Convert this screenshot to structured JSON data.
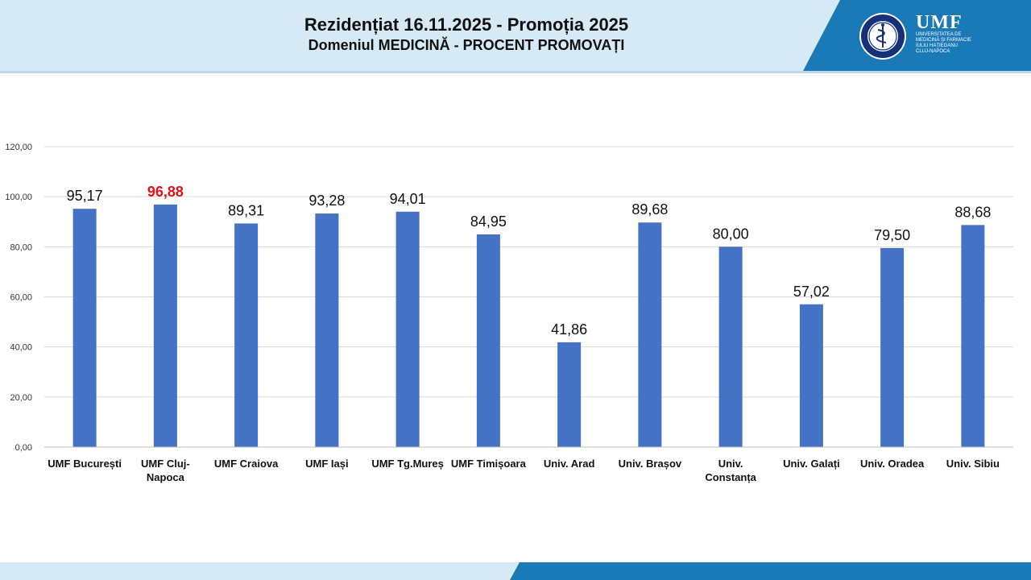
{
  "header": {
    "title": "Rezidențiat 16.11.2025 - Promoția 2025",
    "subtitle": "Domeniul MEDICINĂ  -  PROCENT PROMOVAȚI"
  },
  "logo": {
    "name": "UMF",
    "line1": "Universitatea de",
    "line2": "Medicină și Farmacie",
    "line3": "Iuliu Hațieganu",
    "line4": "Cluj-Napoca"
  },
  "colors": {
    "header_bg": "#d6eaf5",
    "brand_blue": "#1a7ab8",
    "bar": "#4472c4",
    "highlight_label": "#e0131a",
    "grid": "#d9d9d9"
  },
  "chart_data": {
    "type": "bar",
    "title": "",
    "xlabel": "",
    "ylabel": "",
    "ylim": [
      0,
      120
    ],
    "yticks": [
      0,
      20,
      40,
      60,
      80,
      100,
      120
    ],
    "ytick_labels": [
      "0,00",
      "20,00",
      "40,00",
      "60,00",
      "80,00",
      "100,00",
      "120,00"
    ],
    "grid": true,
    "categories": [
      [
        "UMF București"
      ],
      [
        "UMF Cluj-",
        "Napoca"
      ],
      [
        "UMF Craiova"
      ],
      [
        "UMF Iași"
      ],
      [
        "UMF Tg.Mureș"
      ],
      [
        "UMF Timișoara"
      ],
      [
        "Univ. Arad"
      ],
      [
        "Univ. Brașov"
      ],
      [
        "Univ.",
        "Constanța"
      ],
      [
        "Univ. Galați"
      ],
      [
        "Univ. Oradea"
      ],
      [
        "Univ. Sibiu"
      ]
    ],
    "values": [
      95.17,
      96.88,
      89.31,
      93.28,
      94.01,
      84.95,
      41.86,
      89.68,
      80.0,
      57.02,
      79.5,
      88.68
    ],
    "value_labels": [
      "95,17",
      "96,88",
      "89,31",
      "93,28",
      "94,01",
      "84,95",
      "41,86",
      "89,68",
      "80,00",
      "57,02",
      "79,50",
      "88,68"
    ],
    "highlight_index": 1
  }
}
